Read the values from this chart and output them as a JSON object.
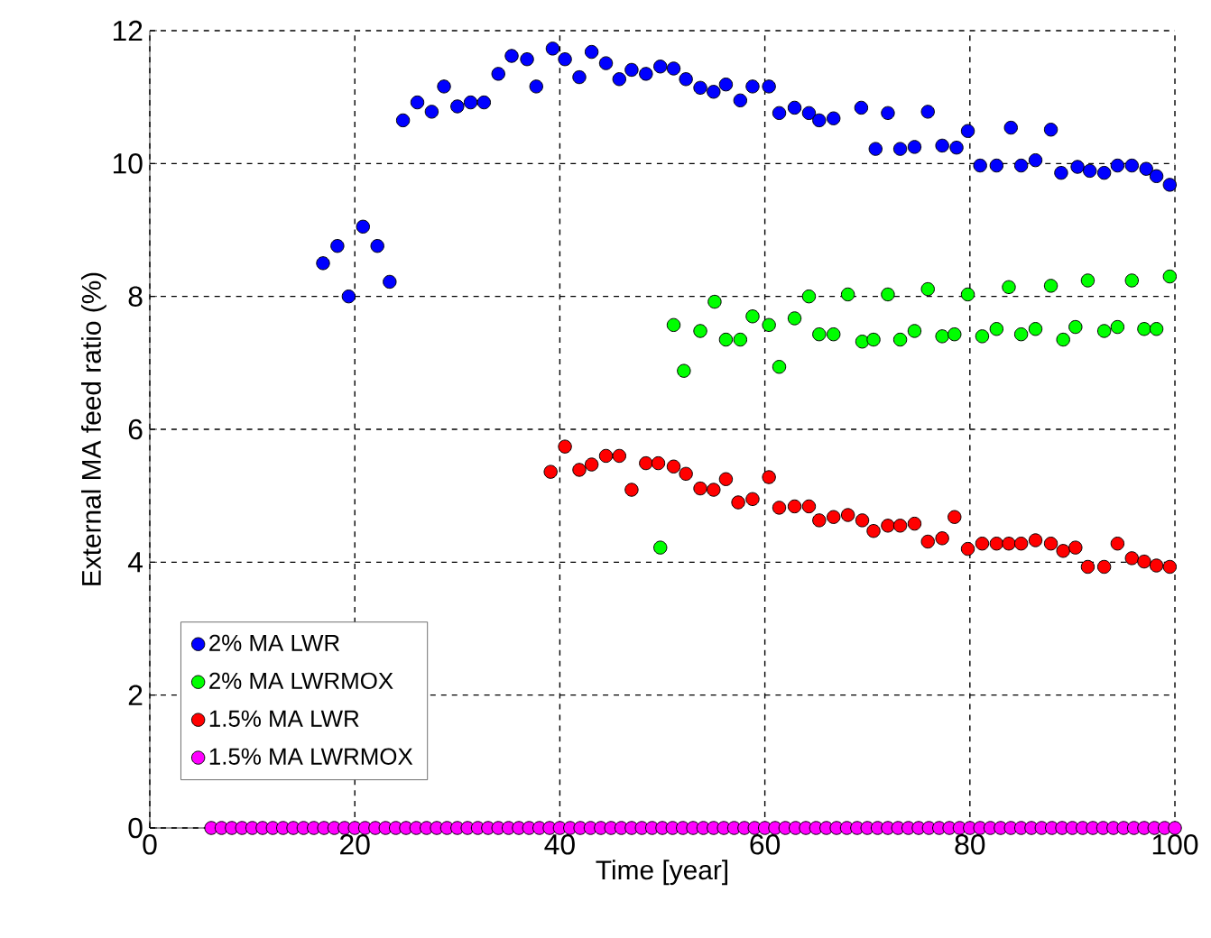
{
  "chart_data": {
    "type": "scatter",
    "xlabel": "Time [year]",
    "ylabel": "External MA feed ratio (%)",
    "xlim": [
      0,
      100
    ],
    "ylim": [
      0,
      12
    ],
    "xticks": [
      0,
      20,
      40,
      60,
      80,
      100
    ],
    "yticks": [
      0,
      2,
      4,
      6,
      8,
      10,
      12
    ],
    "grid": true,
    "legend": "bottom left",
    "marker": "circle",
    "series": [
      {
        "name": "2% MA LWR",
        "color": "#0000ff",
        "x": [
          16.9,
          18.3,
          19.4,
          20.8,
          22.2,
          23.4,
          24.7,
          26.1,
          27.5,
          28.7,
          30.0,
          31.3,
          32.6,
          34.0,
          35.3,
          36.8,
          37.7,
          39.3,
          40.5,
          41.9,
          43.1,
          44.5,
          45.8,
          47.0,
          48.4,
          49.8,
          51.1,
          52.3,
          53.7,
          55.0,
          56.2,
          57.6,
          58.8,
          60.4,
          61.4,
          62.9,
          64.3,
          65.3,
          66.7,
          69.4,
          70.8,
          72.0,
          73.2,
          74.6,
          75.9,
          77.3,
          78.7,
          79.8,
          81.0,
          82.6,
          84.0,
          85.0,
          86.4,
          87.9,
          88.9,
          90.5,
          91.7,
          93.1,
          94.4,
          95.8,
          97.2,
          98.2,
          99.5
        ],
        "values": [
          8.5,
          8.76,
          8.0,
          9.05,
          8.76,
          8.22,
          10.65,
          10.92,
          10.78,
          11.16,
          10.86,
          10.92,
          10.92,
          11.35,
          11.62,
          11.57,
          11.16,
          11.73,
          11.57,
          11.3,
          11.68,
          11.51,
          11.27,
          11.41,
          11.35,
          11.46,
          11.43,
          11.27,
          11.14,
          11.08,
          11.19,
          10.95,
          11.16,
          11.16,
          10.76,
          10.84,
          10.76,
          10.65,
          10.68,
          10.84,
          10.22,
          10.76,
          10.22,
          10.25,
          10.78,
          10.27,
          10.24,
          10.49,
          9.97,
          9.97,
          10.54,
          9.97,
          10.05,
          10.51,
          9.86,
          9.95,
          9.89,
          9.86,
          9.97,
          9.97,
          9.92,
          9.81,
          9.68
        ]
      },
      {
        "name": "2% MA LWRMOX",
        "color": "#00ff00",
        "x": [
          49.8,
          51.1,
          52.1,
          53.7,
          55.1,
          56.2,
          57.6,
          58.8,
          60.4,
          61.4,
          62.9,
          64.3,
          65.3,
          66.7,
          68.1,
          69.5,
          70.6,
          72.0,
          73.2,
          74.6,
          75.9,
          77.3,
          78.5,
          79.8,
          81.2,
          82.6,
          83.8,
          85.0,
          86.4,
          87.9,
          89.1,
          90.3,
          91.5,
          93.1,
          94.4,
          95.8,
          97.0,
          98.2,
          99.5
        ],
        "values": [
          4.22,
          7.57,
          6.88,
          7.48,
          7.92,
          7.35,
          7.35,
          7.7,
          7.57,
          6.94,
          7.67,
          8.0,
          7.43,
          7.43,
          8.03,
          7.32,
          7.35,
          8.03,
          7.35,
          7.48,
          8.11,
          7.4,
          7.43,
          8.03,
          7.4,
          7.51,
          8.14,
          7.43,
          7.51,
          8.16,
          7.35,
          7.54,
          8.24,
          7.48,
          7.54,
          8.24,
          7.51,
          7.51,
          8.3
        ]
      },
      {
        "name": "1.5% MA LWR",
        "color": "#ff0000",
        "x": [
          39.1,
          40.5,
          41.9,
          43.1,
          44.5,
          45.8,
          47.0,
          48.4,
          49.6,
          51.1,
          52.3,
          53.7,
          55.0,
          56.2,
          57.4,
          58.8,
          60.4,
          61.4,
          62.9,
          64.3,
          65.3,
          66.7,
          68.1,
          69.5,
          70.6,
          72.0,
          73.2,
          74.6,
          75.9,
          77.3,
          78.5,
          79.8,
          81.2,
          82.6,
          83.8,
          85.0,
          86.4,
          87.9,
          89.1,
          90.3,
          91.5,
          93.1,
          94.4,
          95.8,
          97.0,
          98.2,
          99.5
        ],
        "values": [
          5.36,
          5.74,
          5.39,
          5.47,
          5.6,
          5.6,
          5.09,
          5.49,
          5.49,
          5.44,
          5.33,
          5.11,
          5.09,
          5.25,
          4.9,
          4.95,
          5.28,
          4.82,
          4.84,
          4.84,
          4.63,
          4.68,
          4.71,
          4.63,
          4.47,
          4.55,
          4.55,
          4.58,
          4.31,
          4.36,
          4.68,
          4.2,
          4.28,
          4.28,
          4.28,
          4.28,
          4.33,
          4.28,
          4.17,
          4.22,
          3.93,
          3.93,
          4.28,
          4.06,
          4.01,
          3.95,
          3.93
        ]
      },
      {
        "name": "1.5% MA LWRMOX",
        "color": "#ff00ff",
        "x": [
          6,
          7,
          8,
          9,
          10,
          11,
          12,
          13,
          14,
          15,
          16,
          17,
          18,
          19,
          20,
          21,
          22,
          23,
          24,
          25,
          26,
          27,
          28,
          29,
          30,
          31,
          32,
          33,
          34,
          35,
          36,
          37,
          38,
          39,
          40,
          41,
          42,
          43,
          44,
          45,
          46,
          47,
          48,
          49,
          50,
          51,
          52,
          53,
          54,
          55,
          56,
          57,
          58,
          59,
          60,
          61,
          62,
          63,
          64,
          65,
          66,
          67,
          68,
          69,
          70,
          71,
          72,
          73,
          74,
          75,
          76,
          77,
          78,
          79,
          80,
          81,
          82,
          83,
          84,
          85,
          86,
          87,
          88,
          89,
          90,
          91,
          92,
          93,
          94,
          95,
          96,
          97,
          98,
          99,
          100
        ],
        "values": [
          0,
          0,
          0,
          0,
          0,
          0,
          0,
          0,
          0,
          0,
          0,
          0,
          0,
          0,
          0,
          0,
          0,
          0,
          0,
          0,
          0,
          0,
          0,
          0,
          0,
          0,
          0,
          0,
          0,
          0,
          0,
          0,
          0,
          0,
          0,
          0,
          0,
          0,
          0,
          0,
          0,
          0,
          0,
          0,
          0,
          0,
          0,
          0,
          0,
          0,
          0,
          0,
          0,
          0,
          0,
          0,
          0,
          0,
          0,
          0,
          0,
          0,
          0,
          0,
          0,
          0,
          0,
          0,
          0,
          0,
          0,
          0,
          0,
          0,
          0,
          0,
          0,
          0,
          0,
          0,
          0,
          0,
          0,
          0,
          0,
          0,
          0,
          0,
          0,
          0,
          0,
          0,
          0,
          0,
          0
        ]
      }
    ]
  }
}
